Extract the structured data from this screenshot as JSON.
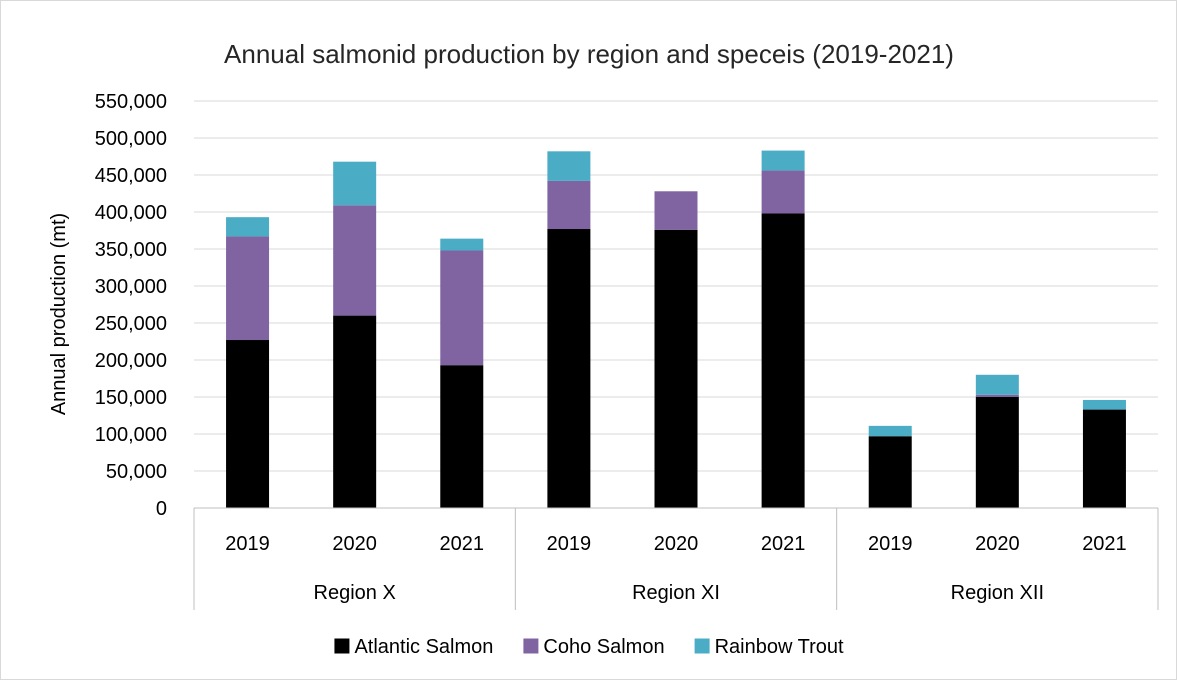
{
  "chart_data": {
    "type": "bar",
    "stacked": true,
    "title": "Annual salmonid production by region and speceis (2019-2021)",
    "xlabel": "",
    "ylabel": "Annual production (mt)",
    "ylim": [
      0,
      550000
    ],
    "ytick_step": 50000,
    "yticks": [
      "0",
      "50,000",
      "100,000",
      "150,000",
      "200,000",
      "250,000",
      "300,000",
      "350,000",
      "400,000",
      "450,000",
      "500,000",
      "550,000"
    ],
    "grid": true,
    "legend_position": "bottom",
    "groups": [
      {
        "label": "Region X",
        "categories": [
          "2019",
          "2020",
          "2021"
        ]
      },
      {
        "label": "Region XI",
        "categories": [
          "2019",
          "2020",
          "2021"
        ]
      },
      {
        "label": "Region XII",
        "categories": [
          "2019",
          "2020",
          "2021"
        ]
      }
    ],
    "series": [
      {
        "name": "Atlantic Salmon",
        "color": "#000000",
        "values": [
          227000,
          260000,
          193000,
          377000,
          376000,
          398000,
          97000,
          150000,
          133000
        ]
      },
      {
        "name": "Coho Salmon",
        "color": "#8064a2",
        "values": [
          140000,
          149000,
          155000,
          65000,
          52000,
          58000,
          0,
          3000,
          0
        ]
      },
      {
        "name": "Rainbow Trout",
        "color": "#4bacc6",
        "values": [
          26000,
          59000,
          16000,
          40000,
          0,
          27000,
          14000,
          27000,
          13000
        ]
      }
    ]
  }
}
